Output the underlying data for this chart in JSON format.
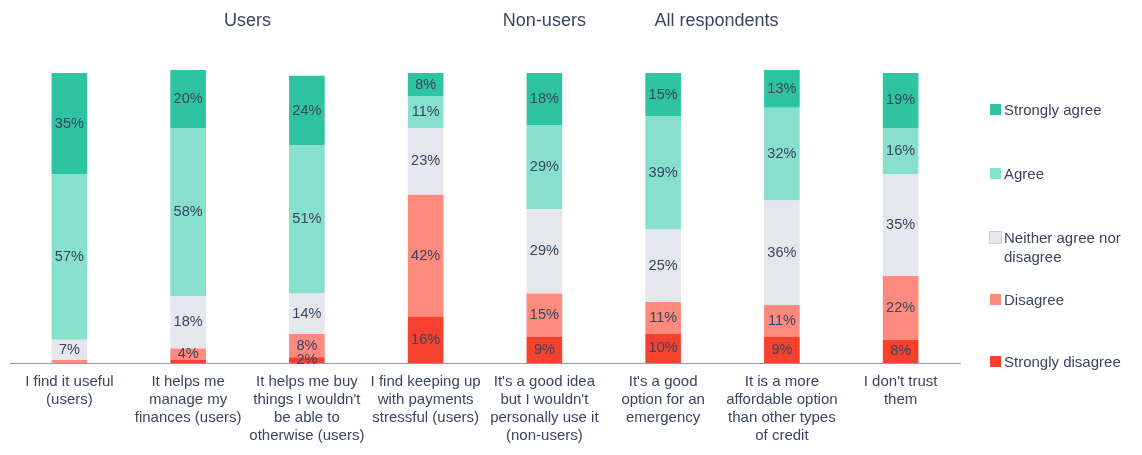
{
  "chart_data": {
    "type": "bar",
    "stacked": true,
    "legend": "right",
    "grid": false,
    "tick_labels": "x",
    "annotations": [
      "Users",
      "Non-users",
      "All respondents"
    ],
    "categories": [
      "I find it useful (users)",
      "It helps me manage my finances (users)",
      "It helps me buy things I wouldn't be able to otherwise (users)",
      "I find keeping up with payments stressful (users)",
      "It's a good idea but I wouldn't personally use it (non-users)",
      "It's a good option for an emergency",
      "It is a more affordable option than other types of credit",
      "I don't trust them"
    ],
    "series": [
      {
        "name": "Strongly disagree",
        "color": "#f5412d",
        "values": [
          0,
          1,
          2,
          16,
          9,
          10,
          9,
          8
        ],
        "value_labels": [
          null,
          null,
          "2%",
          "16%",
          "9%",
          "10%",
          "9%",
          "8%"
        ]
      },
      {
        "name": "Disagree",
        "color": "#fd8a7c",
        "values": [
          1,
          4,
          8,
          42,
          15,
          11,
          11,
          22
        ],
        "value_labels": [
          null,
          "4%",
          "8%",
          "42%",
          "15%",
          "11%",
          "11%",
          "22%"
        ]
      },
      {
        "name": "Neither agree nor disagree",
        "color": "#e5e7ec",
        "values": [
          7,
          18,
          14,
          23,
          29,
          25,
          36,
          35
        ],
        "value_labels": [
          "7%",
          "18%",
          "14%",
          "23%",
          "29%",
          "25%",
          "36%",
          "35%"
        ]
      },
      {
        "name": "Agree",
        "color": "#86e0cb",
        "values": [
          57,
          58,
          51,
          11,
          29,
          39,
          32,
          16
        ],
        "value_labels": [
          "57%",
          "58%",
          "51%",
          "11%",
          "29%",
          "39%",
          "32%",
          "16%"
        ]
      },
      {
        "name": "Strongly agree",
        "color": "#2ec4a0",
        "values": [
          35,
          20,
          24,
          8,
          18,
          15,
          13,
          19
        ],
        "value_labels": [
          "35%",
          "20%",
          "24%",
          "8%",
          "18%",
          "15%",
          "13%",
          "19%"
        ]
      }
    ]
  }
}
